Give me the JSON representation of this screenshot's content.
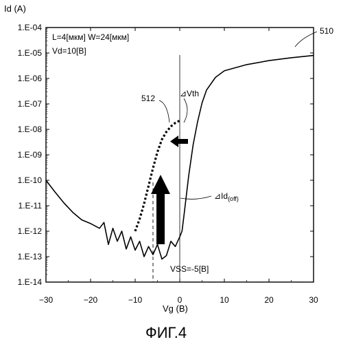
{
  "chart_data": {
    "type": "line",
    "ylabel": "Id (A)",
    "xlabel": "Vg (B)",
    "xlim": [
      -30,
      30
    ],
    "ylim": [
      1e-14,
      0.0001
    ],
    "yscale": "log",
    "grid": false,
    "x_ticks": [
      -30,
      -20,
      -10,
      0,
      10,
      20,
      30
    ],
    "x_tick_labels": [
      "−30",
      "−20",
      "−10",
      "0",
      "10",
      "20",
      "30"
    ],
    "y_ticks": [
      1e-14,
      1e-13,
      1e-12,
      1e-11,
      1e-10,
      1e-09,
      1e-08,
      1e-07,
      1e-06,
      1e-05,
      0.0001
    ],
    "y_tick_labels": [
      "1.E-14",
      "1.E-13",
      "1.E-12",
      "1.E-11",
      "1.E-10",
      "1.E-09",
      "1.E-08",
      "1.E-07",
      "1.E-06",
      "1.E-05",
      "1.E-04"
    ],
    "conditions": [
      "L=4[мкм] W=24[мкм]",
      "Vd=10[B]"
    ],
    "series": [
      {
        "name": "510",
        "style": "solid",
        "points": [
          [
            -30,
            1e-10
          ],
          [
            -28,
            3.5e-11
          ],
          [
            -26,
            1.3e-11
          ],
          [
            -24,
            5.5e-12
          ],
          [
            -22,
            2.8e-12
          ],
          [
            -20,
            2e-12
          ],
          [
            -18,
            1.3e-12
          ],
          [
            -17,
            2.2e-12
          ],
          [
            -16,
            3e-13
          ],
          [
            -15,
            1.3e-12
          ],
          [
            -14,
            4e-13
          ],
          [
            -13,
            1e-12
          ],
          [
            -12,
            2e-13
          ],
          [
            -11,
            6e-13
          ],
          [
            -10,
            1.8e-13
          ],
          [
            -9,
            4e-13
          ],
          [
            -8,
            1e-13
          ],
          [
            -7,
            2.5e-13
          ],
          [
            -6,
            1.2e-13
          ],
          [
            -5,
            3e-13
          ],
          [
            -4,
            8e-14
          ],
          [
            -3,
            1.1e-13
          ],
          [
            -2,
            4e-13
          ],
          [
            -1,
            2.5e-13
          ],
          [
            0,
            6e-13
          ],
          [
            0.5,
            1e-12
          ],
          [
            1,
            5e-12
          ],
          [
            2,
            1.5e-10
          ],
          [
            3,
            2.5e-09
          ],
          [
            4,
            2e-08
          ],
          [
            5,
            1.1e-07
          ],
          [
            6,
            3.5e-07
          ],
          [
            8,
            1.1e-06
          ],
          [
            10,
            2e-06
          ],
          [
            15,
            3.5e-06
          ],
          [
            20,
            5e-06
          ],
          [
            25,
            6.5e-06
          ],
          [
            30,
            8e-06
          ]
        ]
      },
      {
        "name": "512",
        "style": "dotted",
        "points": [
          [
            -10,
            1e-12
          ],
          [
            -9,
            3e-12
          ],
          [
            -8,
            1.2e-11
          ],
          [
            -7,
            6e-11
          ],
          [
            -6,
            3e-10
          ],
          [
            -5,
            1.3e-09
          ],
          [
            -4,
            4e-09
          ],
          [
            -3,
            8e-09
          ],
          [
            -2,
            1.3e-08
          ],
          [
            -1,
            1.8e-08
          ],
          [
            0,
            2.2e-08
          ]
        ]
      }
    ],
    "vss_label": "VSS=-5[B]",
    "vss_x": -6,
    "reference_x": 0,
    "delta_vth_label": "⊿Vth",
    "delta_id_label": "⊿Id",
    "delta_id_subscript": "(off)",
    "caption": "ФИГ.4"
  }
}
